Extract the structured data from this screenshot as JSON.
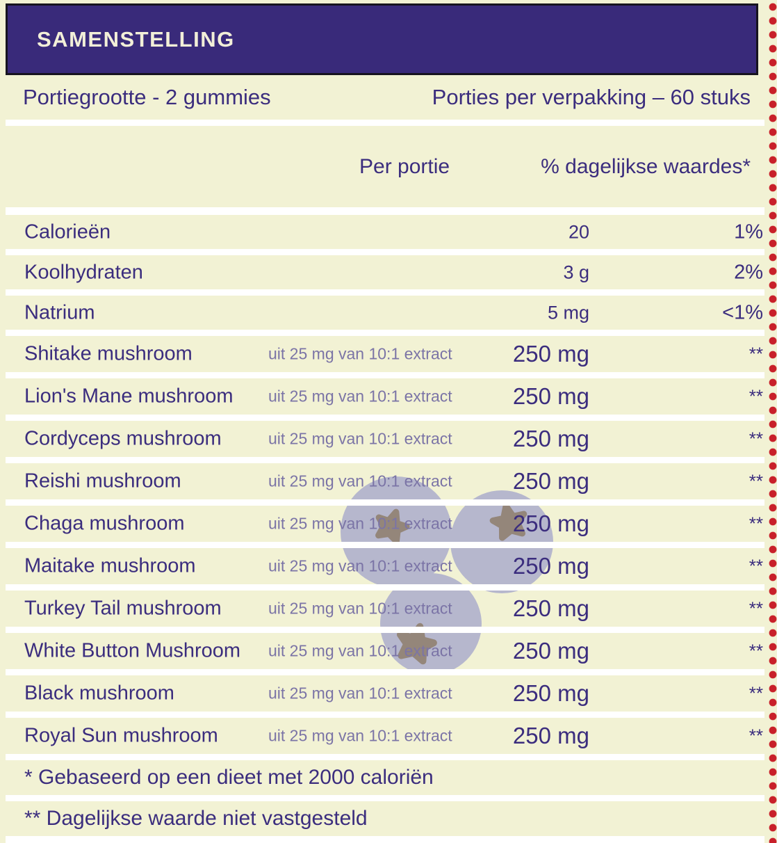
{
  "theme": {
    "bg": "#f2f2d4",
    "header_bg": "#392a7a",
    "header_border": "#17141f",
    "header_text": "#f2efd8",
    "text_primary": "#3b2d7e",
    "text_muted": "#7b74a6",
    "divider": "#ffffff",
    "dot_red": "#c8202a",
    "berry_fill": "#b6b7cd",
    "berry_star": "#94867a"
  },
  "header": {
    "title": "SAMENSTELLING"
  },
  "serving_info": {
    "left": "Portiegrootte - 2 gummies",
    "right": "Porties per verpakking – 60 stuks"
  },
  "columns": {
    "per_serving": "Per portie",
    "daily_value": "% dagelijkse waardes*"
  },
  "rows": [
    {
      "name": "Calorieën",
      "note": "",
      "amount": "20",
      "dv": "1%",
      "size": "small"
    },
    {
      "name": "Koolhydraten",
      "note": "",
      "amount": "3 g",
      "dv": "2%",
      "size": "small"
    },
    {
      "name": "Natrium",
      "note": "",
      "amount": "5 mg",
      "dv": "<1%",
      "size": "small"
    },
    {
      "name": "Shitake mushroom",
      "note": "uit 25 mg van 10:1 extract",
      "amount": "250 mg",
      "dv": "**",
      "size": "large"
    },
    {
      "name": "Lion's Mane mushroom",
      "note": "uit 25 mg van 10:1 extract",
      "amount": "250 mg",
      "dv": "**",
      "size": "large"
    },
    {
      "name": "Cordyceps mushroom",
      "note": "uit 25 mg van 10:1 extract",
      "amount": "250 mg",
      "dv": "**",
      "size": "large"
    },
    {
      "name": "Reishi mushroom",
      "note": "uit 25 mg van 10:1 extract",
      "amount": "250 mg",
      "dv": "**",
      "size": "large"
    },
    {
      "name": "Chaga mushroom",
      "note": "uit 25 mg van 10:1 extract",
      "amount": "250 mg",
      "dv": "**",
      "size": "large"
    },
    {
      "name": "Maitake mushroom",
      "note": "uit 25 mg van 10:1 extract",
      "amount": "250 mg",
      "dv": "**",
      "size": "large"
    },
    {
      "name": "Turkey Tail mushroom",
      "note": "uit 25 mg van 10:1 extract",
      "amount": "250 mg",
      "dv": "**",
      "size": "large"
    },
    {
      "name": "White Button Mushroom",
      "note": "uit 25 mg van 10:1 extract",
      "amount": "250 mg",
      "dv": "**",
      "size": "large"
    },
    {
      "name": "Black mushroom",
      "note": "uit 25 mg van 10:1 extract",
      "amount": "250 mg",
      "dv": "**",
      "size": "large"
    },
    {
      "name": "Royal Sun mushroom",
      "note": "uit 25 mg van 10:1 extract",
      "amount": "250 mg",
      "dv": "**",
      "size": "large"
    }
  ],
  "footnotes": [
    "* Gebaseerd op een dieet met 2000 caloriën",
    "** Dagelijkse waarde niet vastgesteld"
  ]
}
